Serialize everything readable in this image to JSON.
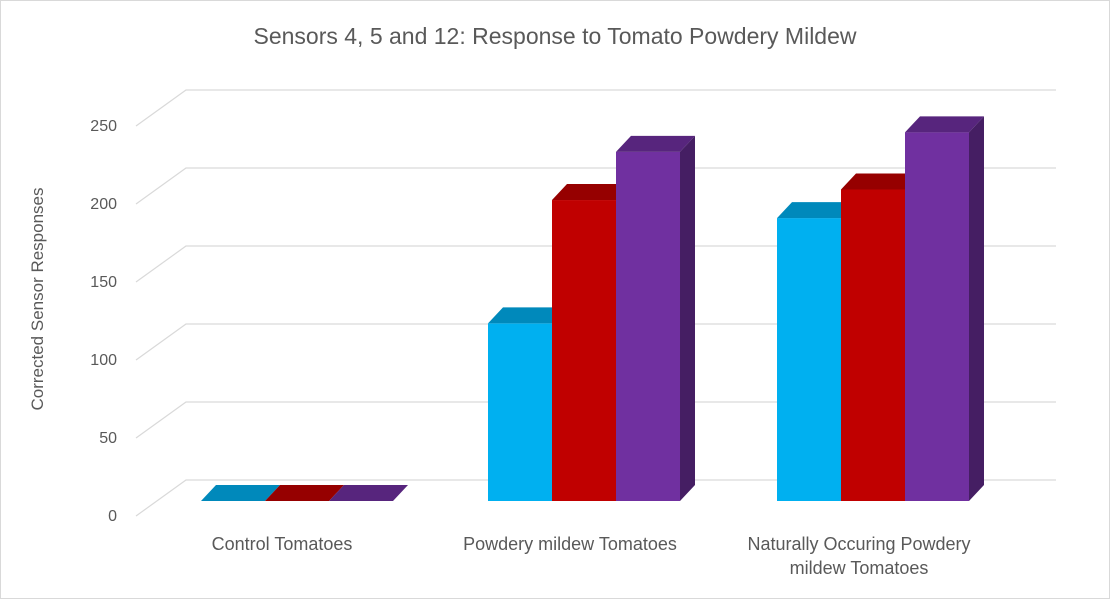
{
  "chart_data": {
    "type": "bar",
    "title": "Sensors 4, 5 and 12:  Response to Tomato Powdery Mildew",
    "ylabel": "Corrected Sensor Responses",
    "xlabel": "",
    "ylim": [
      0,
      250
    ],
    "yticks": [
      0,
      50,
      100,
      150,
      200,
      250
    ],
    "grid": true,
    "legend": "none",
    "categories": [
      [
        "Control Tomatoes"
      ],
      [
        "Powdery mildew Tomatoes"
      ],
      [
        "Naturally Occuring Powdery",
        "mildew Tomatoes"
      ]
    ],
    "series": [
      {
        "values": [
          0,
          118,
          188
        ],
        "color": "#00b0f0"
      },
      {
        "values": [
          0,
          200,
          207
        ],
        "color": "#c00000"
      },
      {
        "values": [
          0,
          232,
          245
        ],
        "color": "#7030a0"
      }
    ]
  }
}
